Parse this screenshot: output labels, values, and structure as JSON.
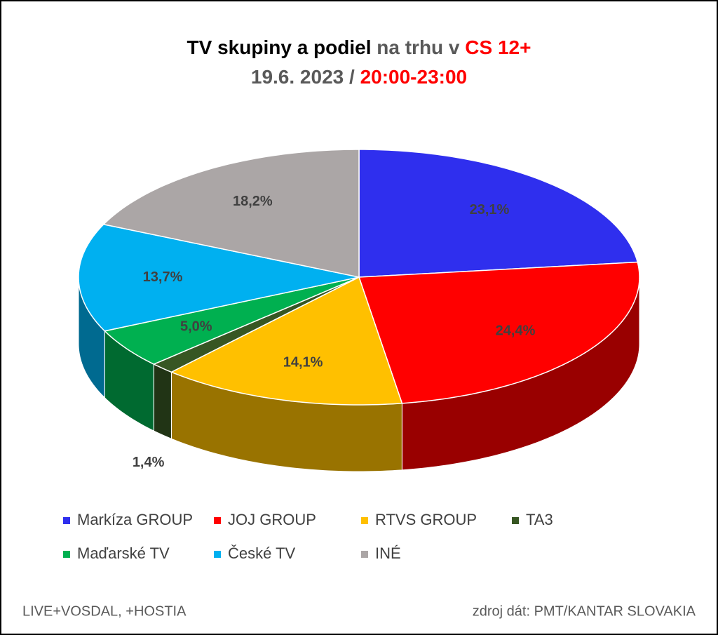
{
  "chart_data": {
    "type": "pie",
    "title": [
      {
        "text": "TV skupiny a podiel",
        "color": "#000000"
      },
      {
        "text": "na trhu v",
        "color": "#595959"
      },
      {
        "text": "CS 12+",
        "color": "#ff0000"
      }
    ],
    "subtitle": [
      {
        "text": "19.6. 2023 /",
        "color": "#595959"
      },
      {
        "text": "20:00-23:00",
        "color": "#ff0000"
      }
    ],
    "categories": [
      "Markíza GROUP",
      "JOJ GROUP",
      "RTVS GROUP",
      "TA3",
      "Maďarské  TV",
      "České  TV",
      "INÉ"
    ],
    "values": [
      23.1,
      24.4,
      14.1,
      1.4,
      5.0,
      13.7,
      18.2
    ],
    "value_labels": [
      "23,1%",
      "24,4%",
      "14,1%",
      "1,4%",
      "5,0%",
      "13,7%",
      "18,2%"
    ],
    "colors": [
      "#2f2fee",
      "#ff0000",
      "#ffc000",
      "#375623",
      "#00b050",
      "#00b0f0",
      "#aba6a6"
    ],
    "notes": [
      "LIVE+VOSDAL, +HOSTIA",
      "zdroj dát: PMT/KANTAR SLOVAKIA"
    ]
  }
}
